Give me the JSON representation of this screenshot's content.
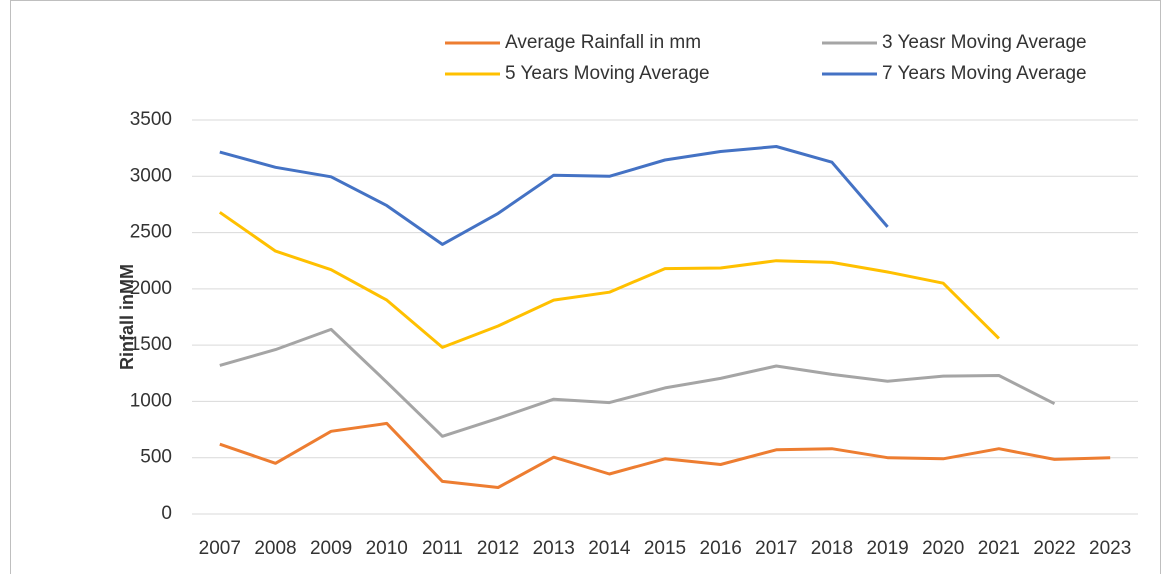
{
  "chart_data": {
    "type": "line",
    "y_label": "Rinfall inMM",
    "categories": [
      "2007",
      "2008",
      "2009",
      "2010",
      "2011",
      "2012",
      "2013",
      "2014",
      "2015",
      "2016",
      "2017",
      "2018",
      "2019",
      "2020",
      "2021",
      "2022",
      "2023"
    ],
    "series": [
      {
        "name": "Average Rainfall in mm",
        "color": "#ed7d31",
        "values": [
          620,
          450,
          735,
          805,
          290,
          235,
          505,
          355,
          490,
          440,
          570,
          580,
          500,
          490,
          580,
          485,
          500
        ]
      },
      {
        "name": "3 Yeasr Moving Average",
        "color": "#a5a5a5",
        "values": [
          1320,
          1460,
          1640,
          1170,
          690,
          850,
          1020,
          990,
          1120,
          1205,
          1315,
          1240,
          1180,
          1225,
          1230,
          980,
          null
        ]
      },
      {
        "name": "5 Years Moving Average",
        "color": "#ffc000",
        "values": [
          2680,
          2335,
          2170,
          1900,
          1480,
          1670,
          1900,
          1970,
          2180,
          2185,
          2250,
          2235,
          2150,
          2050,
          1560,
          null,
          null
        ]
      },
      {
        "name": "7 Years Moving Average",
        "color": "#4472c4",
        "values": [
          3215,
          3080,
          2995,
          2740,
          2395,
          2670,
          3010,
          3000,
          3145,
          3220,
          3265,
          3125,
          2550,
          null,
          null,
          null,
          null
        ]
      }
    ],
    "ylim": [
      0,
      3500
    ],
    "yticks": [
      0,
      500,
      1000,
      1500,
      2000,
      2500,
      3000,
      3500
    ],
    "grid": true
  }
}
